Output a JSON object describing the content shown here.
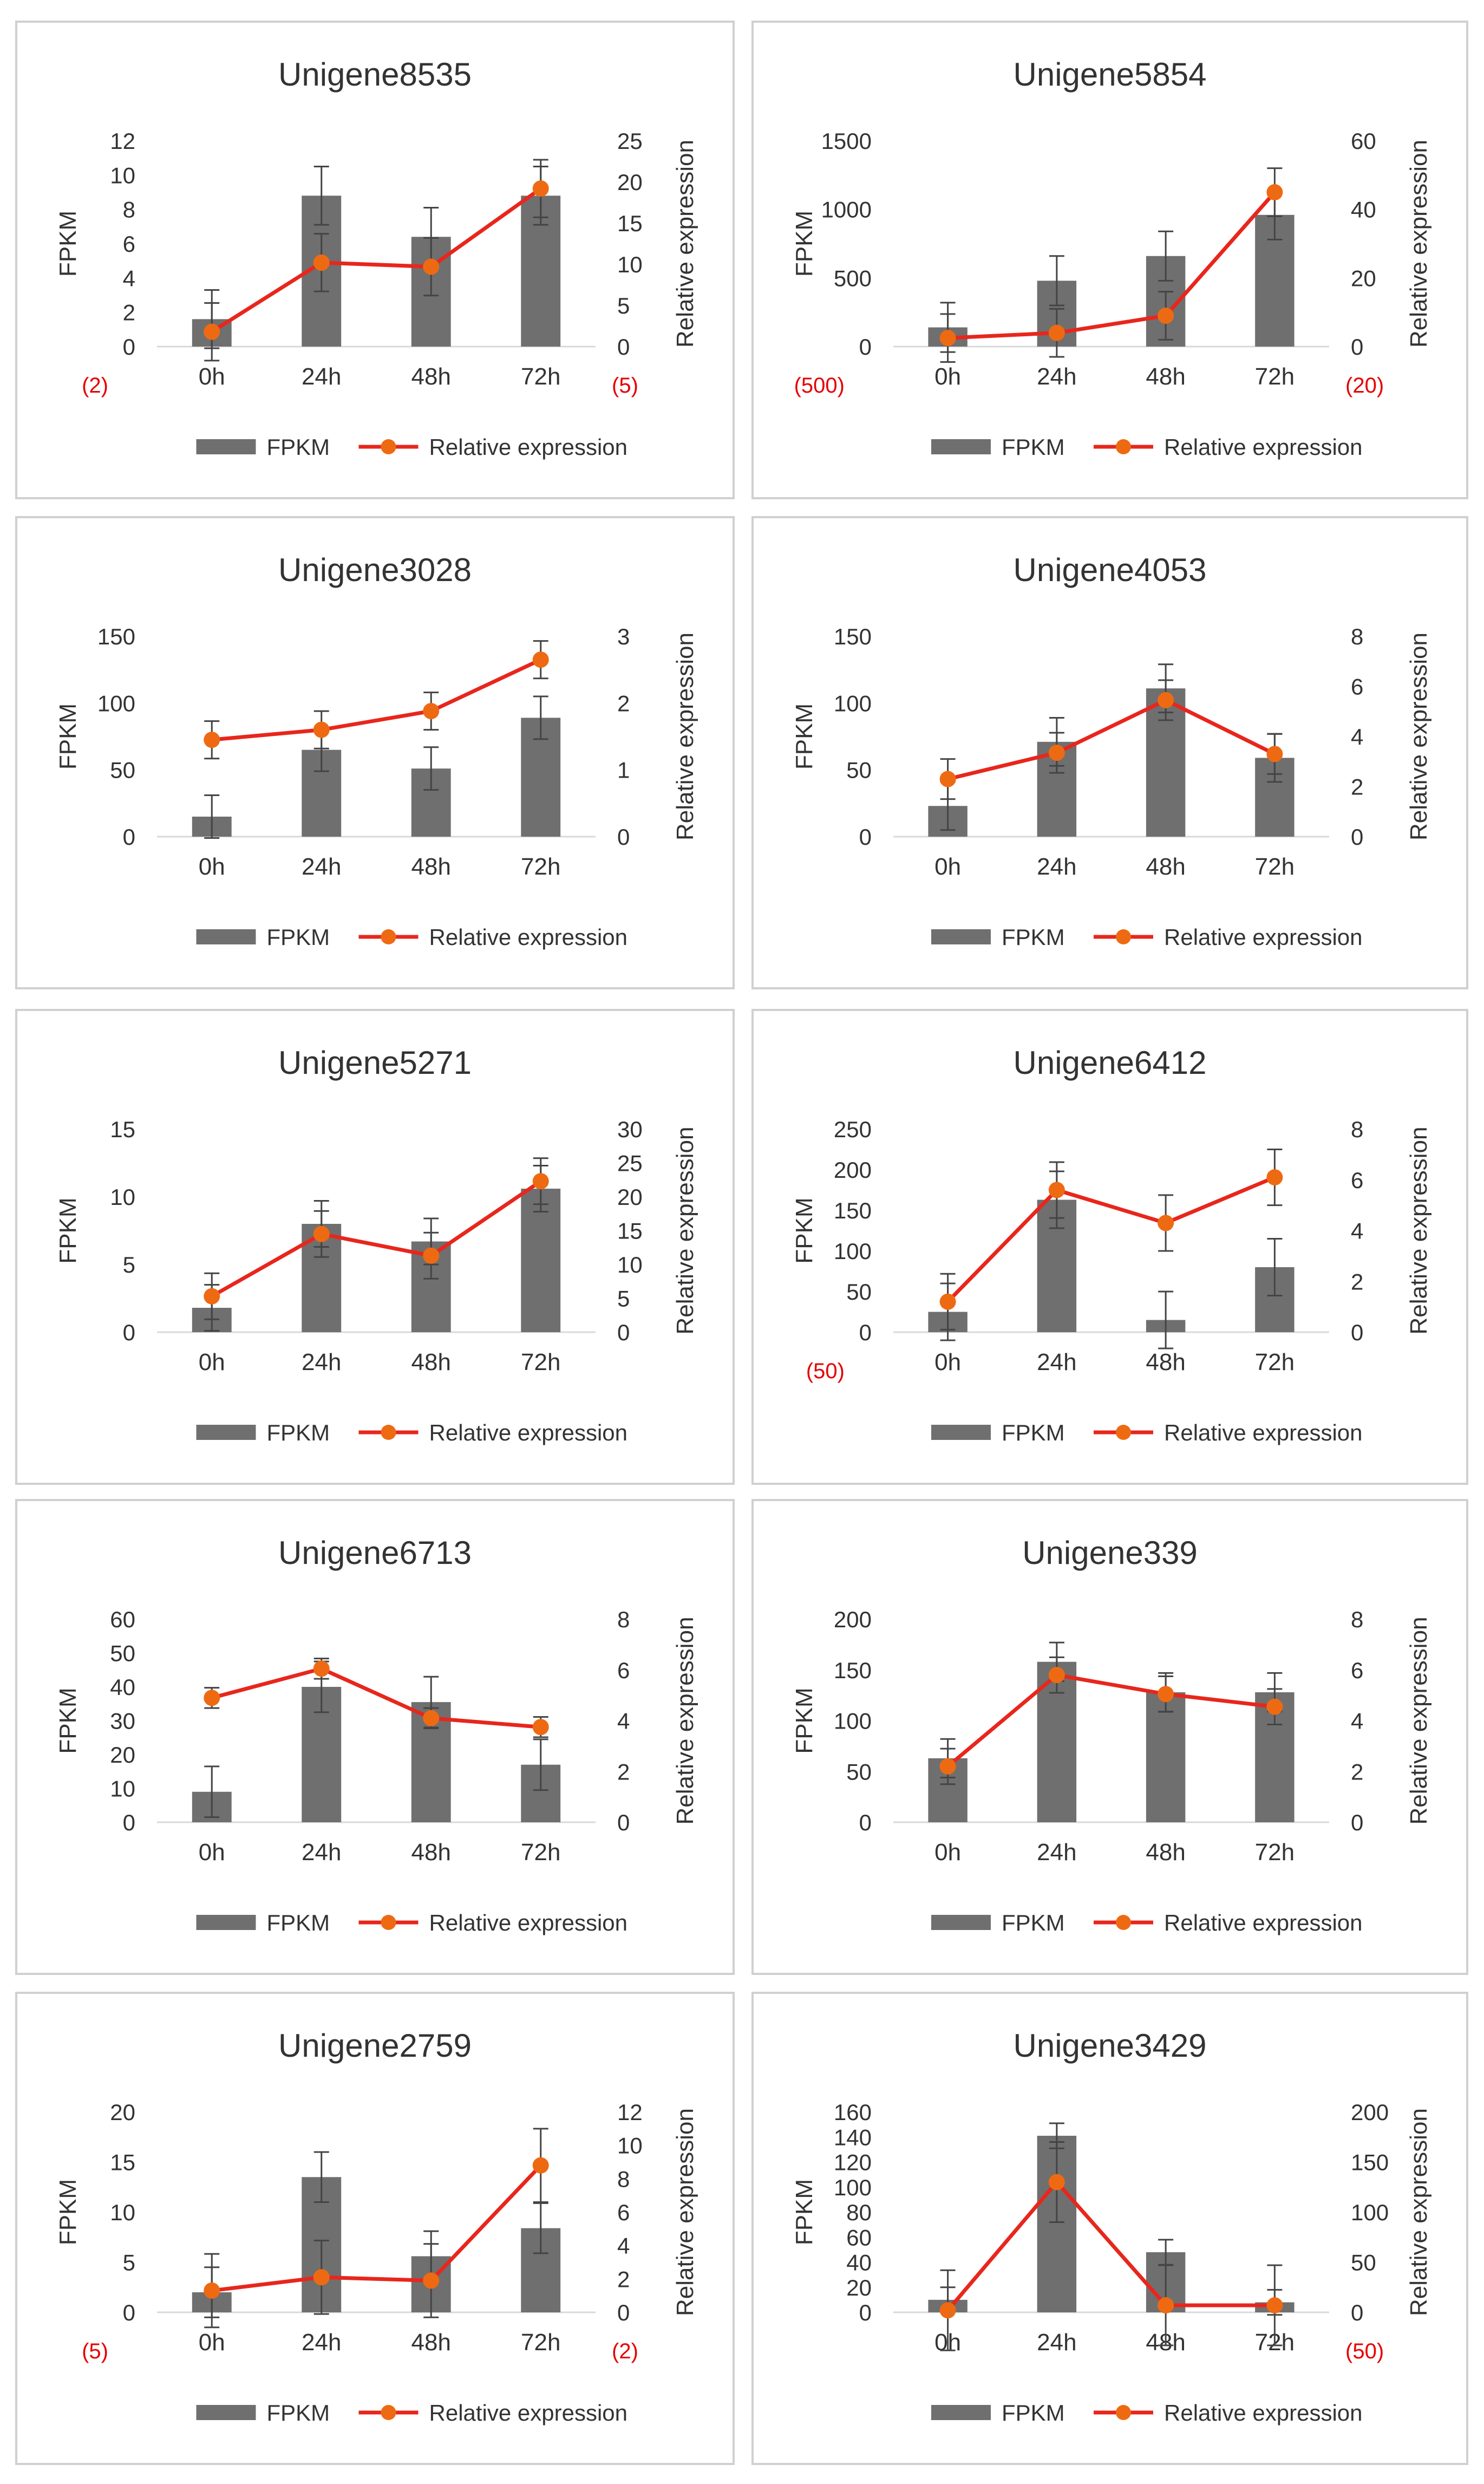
{
  "colors": {
    "bar": "#6f6f6f",
    "line": "#e8261c",
    "marker": "#ee6a12",
    "axis_text": "#333333",
    "title": "#333333",
    "negative_label": "#e60000",
    "error_bar": "#444444",
    "panel_border": "#d0d0d0"
  },
  "chart_data": [
    {
      "type": "bar+line",
      "title": "Unigene8535",
      "categories": [
        "0h",
        "24h",
        "48h",
        "72h"
      ],
      "ylabel": "FPKM",
      "y2label": "Relative expression",
      "ylim": [
        0,
        12
      ],
      "yticks": [
        0,
        2,
        4,
        6,
        8,
        10,
        12
      ],
      "y2lim": [
        0,
        25
      ],
      "y2ticks": [
        0,
        5,
        10,
        15,
        20,
        25
      ],
      "ylow_label": "(2)",
      "y2low_label": "(5)",
      "series": [
        {
          "name": "FPKM",
          "type": "bar",
          "axis": "left",
          "values": [
            1.6,
            8.8,
            6.4,
            8.8
          ],
          "errors": [
            1.7,
            1.7,
            1.7,
            1.7
          ]
        },
        {
          "name": "Relative expression",
          "type": "line",
          "axis": "right",
          "values": [
            1.8,
            10.2,
            9.7,
            19.2
          ],
          "errors": [
            3.5,
            3.5,
            3.5,
            3.5
          ]
        }
      ]
    },
    {
      "type": "bar+line",
      "title": "Unigene5854",
      "categories": [
        "0h",
        "24h",
        "48h",
        "72h"
      ],
      "ylabel": "FPKM",
      "y2label": "Relative expression",
      "ylim": [
        0,
        1500
      ],
      "yticks": [
        0,
        500,
        1000,
        1500
      ],
      "y2lim": [
        0,
        60
      ],
      "y2ticks": [
        0,
        20,
        40,
        60
      ],
      "ylow_label": "(500)",
      "y2low_label": "(20)",
      "series": [
        {
          "name": "FPKM",
          "type": "bar",
          "axis": "left",
          "values": [
            140,
            480,
            660,
            960
          ],
          "errors": [
            180,
            180,
            180,
            180
          ]
        },
        {
          "name": "Relative expression",
          "type": "line",
          "axis": "right",
          "values": [
            2.5,
            4,
            9,
            45
          ],
          "errors": [
            7,
            7,
            7,
            7
          ]
        }
      ]
    },
    {
      "type": "bar+line",
      "title": "Unigene3028",
      "categories": [
        "0h",
        "24h",
        "48h",
        "72h"
      ],
      "ylabel": "FPKM",
      "y2label": "Relative expression",
      "ylim": [
        0,
        150
      ],
      "yticks": [
        0,
        50,
        100,
        150
      ],
      "y2lim": [
        0,
        3
      ],
      "y2ticks": [
        0,
        1,
        2,
        3
      ],
      "ylow_label": "",
      "y2low_label": "",
      "series": [
        {
          "name": "FPKM",
          "type": "bar",
          "axis": "left",
          "values": [
            15,
            65,
            51,
            89
          ],
          "errors": [
            16,
            16,
            16,
            16
          ]
        },
        {
          "name": "Relative expression",
          "type": "line",
          "axis": "right",
          "values": [
            1.45,
            1.6,
            1.88,
            2.65
          ],
          "errors": [
            0.28,
            0.28,
            0.28,
            0.28
          ]
        }
      ]
    },
    {
      "type": "bar+line",
      "title": "Unigene4053",
      "categories": [
        "0h",
        "24h",
        "48h",
        "72h"
      ],
      "ylabel": "FPKM",
      "y2label": "Relative expression",
      "ylim": [
        0,
        150
      ],
      "yticks": [
        0,
        50,
        100,
        150
      ],
      "y2lim": [
        0,
        8
      ],
      "y2ticks": [
        0,
        2,
        4,
        6,
        8
      ],
      "ylow_label": "",
      "y2low_label": "",
      "series": [
        {
          "name": "FPKM",
          "type": "bar",
          "axis": "left",
          "values": [
            23,
            71,
            111,
            59
          ],
          "errors": [
            18,
            18,
            18,
            18
          ]
        },
        {
          "name": "Relative expression",
          "type": "line",
          "axis": "right",
          "values": [
            2.3,
            3.35,
            5.45,
            3.3
          ],
          "errors": [
            0.8,
            0.8,
            0.8,
            0.8
          ]
        }
      ]
    },
    {
      "type": "bar+line",
      "title": "Unigene5271",
      "categories": [
        "0h",
        "24h",
        "48h",
        "72h"
      ],
      "ylabel": "FPKM",
      "y2label": "Relative expression",
      "ylim": [
        0,
        15
      ],
      "yticks": [
        0,
        5,
        10,
        15
      ],
      "y2lim": [
        0,
        30
      ],
      "y2ticks": [
        0,
        5,
        10,
        15,
        20,
        25,
        30
      ],
      "ylow_label": "",
      "y2low_label": "",
      "series": [
        {
          "name": "FPKM",
          "type": "bar",
          "axis": "left",
          "values": [
            1.8,
            8,
            6.7,
            10.6
          ],
          "errors": [
            1.7,
            1.7,
            1.7,
            1.7
          ]
        },
        {
          "name": "Relative expression",
          "type": "line",
          "axis": "right",
          "values": [
            5.3,
            14.5,
            11.3,
            22.3
          ],
          "errors": [
            3.4,
            3.4,
            3.4,
            3.4
          ]
        }
      ]
    },
    {
      "type": "bar+line",
      "title": "Unigene6412",
      "categories": [
        "0h",
        "24h",
        "48h",
        "72h"
      ],
      "ylabel": "FPKM",
      "y2label": "Relative expression",
      "ylim": [
        0,
        250
      ],
      "yticks": [
        0,
        50,
        100,
        150,
        200,
        250
      ],
      "y2lim": [
        0,
        8
      ],
      "y2ticks": [
        0,
        2,
        4,
        6,
        8
      ],
      "ylow_label": "(50)",
      "y2low_label": "",
      "series": [
        {
          "name": "FPKM",
          "type": "bar",
          "axis": "left",
          "values": [
            25,
            163,
            15,
            80
          ],
          "errors": [
            35,
            35,
            35,
            35
          ]
        },
        {
          "name": "Relative expression",
          "type": "line",
          "axis": "right",
          "values": [
            1.2,
            5.6,
            4.3,
            6.1
          ],
          "errors": [
            1.1,
            1.1,
            1.1,
            1.1
          ]
        }
      ]
    },
    {
      "type": "bar+line",
      "title": "Unigene6713",
      "categories": [
        "0h",
        "24h",
        "48h",
        "72h"
      ],
      "ylabel": "FPKM",
      "y2label": "Relative expression",
      "ylim": [
        0,
        60
      ],
      "yticks": [
        0,
        10,
        20,
        30,
        40,
        50,
        60
      ],
      "y2lim": [
        0,
        8
      ],
      "y2ticks": [
        0,
        2,
        4,
        6,
        8
      ],
      "ylow_label": "",
      "y2low_label": "",
      "series": [
        {
          "name": "FPKM",
          "type": "bar",
          "axis": "left",
          "values": [
            9,
            40,
            35.5,
            17
          ],
          "errors": [
            7.5,
            7.5,
            7.5,
            7.5
          ]
        },
        {
          "name": "Relative expression",
          "type": "line",
          "axis": "right",
          "values": [
            4.9,
            6.05,
            4.1,
            3.75
          ],
          "errors": [
            0.4,
            0.4,
            0.4,
            0.4
          ]
        }
      ]
    },
    {
      "type": "bar+line",
      "title": "Unigene339",
      "categories": [
        "0h",
        "24h",
        "48h",
        "72h"
      ],
      "ylabel": "FPKM",
      "y2label": "Relative expression",
      "ylim": [
        0,
        200
      ],
      "yticks": [
        0,
        50,
        100,
        150,
        200
      ],
      "y2lim": [
        0,
        8
      ],
      "y2ticks": [
        0,
        2,
        4,
        6,
        8
      ],
      "ylow_label": "",
      "y2low_label": "",
      "series": [
        {
          "name": "FPKM",
          "type": "bar",
          "axis": "left",
          "values": [
            63,
            158,
            128,
            128
          ],
          "errors": [
            19,
            19,
            19,
            19
          ]
        },
        {
          "name": "Relative expression",
          "type": "line",
          "axis": "right",
          "values": [
            2.2,
            5.8,
            5.05,
            4.55
          ],
          "errors": [
            0.7,
            0.7,
            0.7,
            0.7
          ]
        }
      ]
    },
    {
      "type": "bar+line",
      "title": "Unigene2759",
      "categories": [
        "0h",
        "24h",
        "48h",
        "72h"
      ],
      "ylabel": "FPKM",
      "y2label": "Relative expression",
      "ylim": [
        0,
        20
      ],
      "yticks": [
        0,
        5,
        10,
        15,
        20
      ],
      "y2lim": [
        0,
        12
      ],
      "y2ticks": [
        0,
        2,
        4,
        6,
        8,
        10,
        12
      ],
      "ylow_label": "(5)",
      "y2low_label": "(2)",
      "series": [
        {
          "name": "FPKM",
          "type": "bar",
          "axis": "left",
          "values": [
            2,
            13.5,
            5.6,
            8.4
          ],
          "errors": [
            2.5,
            2.5,
            2.5,
            2.5
          ]
        },
        {
          "name": "Relative expression",
          "type": "line",
          "axis": "right",
          "values": [
            1.3,
            2.1,
            1.9,
            8.8
          ],
          "errors": [
            2.2,
            2.2,
            2.2,
            2.2
          ]
        }
      ]
    },
    {
      "type": "bar+line",
      "title": "Unigene3429",
      "categories": [
        "0h",
        "24h",
        "48h",
        "72h"
      ],
      "ylabel": "FPKM",
      "y2label": "Relative expression",
      "ylim": [
        0,
        160
      ],
      "yticks": [
        0,
        20,
        40,
        60,
        80,
        100,
        120,
        140,
        160
      ],
      "y2lim": [
        0,
        200
      ],
      "y2ticks": [
        0,
        50,
        100,
        150,
        200
      ],
      "ylow_label": "",
      "y2low_label": "(50)",
      "series": [
        {
          "name": "FPKM",
          "type": "bar",
          "axis": "left",
          "values": [
            10,
            141,
            48,
            8
          ],
          "errors": [
            10,
            10,
            10,
            10
          ]
        },
        {
          "name": "Relative expression",
          "type": "line",
          "axis": "right",
          "values": [
            2,
            130,
            7,
            7
          ],
          "errors": [
            40,
            40,
            40,
            40
          ]
        }
      ]
    }
  ]
}
